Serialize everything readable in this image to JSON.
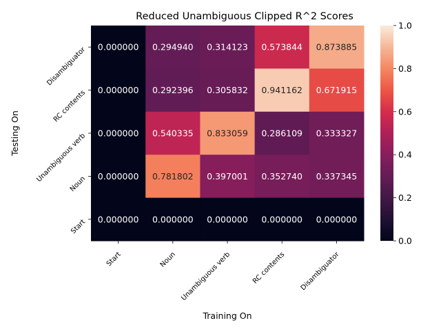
{
  "chart_data": {
    "type": "heatmap",
    "title": "Reduced Unambiguous Clipped R^2 Scores",
    "xlabel": "Training On",
    "ylabel": "Testing On",
    "x_categories": [
      "Start",
      "Noun",
      "Unambiguous verb",
      "RC contents",
      "Disambiguator"
    ],
    "y_categories_top_to_bottom": [
      "Disambiguator",
      "RC contents",
      "Unambiguous verb",
      "Noun",
      "Start"
    ],
    "values": [
      [
        0.0,
        0.29494,
        0.314123,
        0.573844,
        0.873885
      ],
      [
        0.0,
        0.292396,
        0.305832,
        0.941162,
        0.671915
      ],
      [
        0.0,
        0.540335,
        0.833059,
        0.286109,
        0.333327
      ],
      [
        0.0,
        0.781802,
        0.397001,
        0.35274,
        0.337345
      ],
      [
        0.0,
        0.0,
        0.0,
        0.0,
        0.0
      ]
    ],
    "value_labels": [
      [
        "0.000000",
        "0.294940",
        "0.314123",
        "0.573844",
        "0.873885"
      ],
      [
        "0.000000",
        "0.292396",
        "0.305832",
        "0.941162",
        "0.671915"
      ],
      [
        "0.000000",
        "0.540335",
        "0.833059",
        "0.286109",
        "0.333327"
      ],
      [
        "0.000000",
        "0.781802",
        "0.397001",
        "0.352740",
        "0.337345"
      ],
      [
        "0.000000",
        "0.000000",
        "0.000000",
        "0.000000",
        "0.000000"
      ]
    ],
    "colorbar": {
      "range": [
        0.0,
        1.0
      ],
      "ticks": [
        "0.0",
        "0.2",
        "0.4",
        "0.6",
        "0.8",
        "1.0"
      ],
      "colormap": "rocket"
    },
    "grid": false,
    "legend": "none"
  }
}
